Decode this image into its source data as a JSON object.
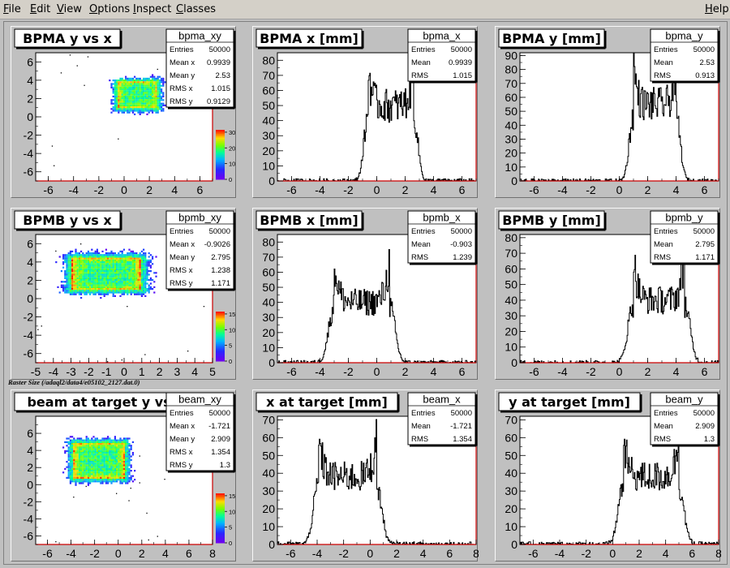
{
  "menubar": {
    "items": [
      {
        "ul": "F",
        "rest": "ile"
      },
      {
        "ul": "E",
        "rest": "dit"
      },
      {
        "ul": "V",
        "rest": "iew"
      },
      {
        "ul": "O",
        "rest": "ptions"
      },
      {
        "ul": "I",
        "rest": "nspect"
      },
      {
        "ul": "C",
        "rest": "lasses"
      }
    ],
    "help": {
      "ul": "H",
      "rest": "elp"
    }
  },
  "raster_caption": "Raster Size (/adaql2/data4/e05102_2127.dat.0)",
  "colors": {
    "hist_line": "#000000",
    "frame_red": "#cc0000",
    "pad_bg": "#ffffff",
    "canvas_bg": "#c0c0c0"
  },
  "chart_data": [
    {
      "type": "heatmap",
      "title": "BPMA y vs x",
      "stat_name": "bpma_xy",
      "stats": [
        [
          "Entries",
          "50000"
        ],
        [
          "Mean x",
          "0.9939"
        ],
        [
          "Mean y",
          "2.53"
        ],
        [
          "RMS x",
          "1.015"
        ],
        [
          "RMS y",
          "0.9129"
        ]
      ],
      "xlim": [
        -7,
        7
      ],
      "ylim": [
        -7,
        7
      ],
      "xticks": [
        -6,
        -4,
        -2,
        0,
        2,
        4,
        6
      ],
      "yticks": [
        -6,
        -4,
        -2,
        0,
        2,
        4,
        6
      ],
      "rect": {
        "xmin": -0.6,
        "xmax": 2.6,
        "ymin": 1.0,
        "ymax": 4.0
      },
      "edge": 0.35,
      "palette_ticks": [
        0,
        10,
        20,
        30
      ]
    },
    {
      "type": "histogram",
      "title": "BPMA x [mm]",
      "stat_name": "bpma_x",
      "stats": [
        [
          "Entries",
          "50000"
        ],
        [
          "Mean",
          "0.9939"
        ],
        [
          "RMS",
          "1.015"
        ]
      ],
      "xlim": [
        -7,
        7
      ],
      "ylim": [
        0,
        85
      ],
      "xticks": [
        -6,
        -4,
        -2,
        0,
        2,
        4,
        6
      ],
      "yticks": [
        0,
        10,
        20,
        30,
        40,
        50,
        60,
        70,
        80
      ],
      "flat": [
        -0.6,
        2.6
      ],
      "edge": 0.35,
      "peak": 78,
      "trough": 50
    },
    {
      "type": "histogram",
      "title": "BPMA y [mm]",
      "stat_name": "bpma_y",
      "stats": [
        [
          "Entries",
          "50000"
        ],
        [
          "Mean",
          "2.53"
        ],
        [
          "RMS",
          "0.913"
        ]
      ],
      "xlim": [
        -7,
        7
      ],
      "ylim": [
        0,
        92
      ],
      "xticks": [
        -6,
        -4,
        -2,
        0,
        2,
        4,
        6
      ],
      "yticks": [
        0,
        10,
        20,
        30,
        40,
        50,
        60,
        70,
        80,
        90
      ],
      "flat": [
        1.0,
        4.0
      ],
      "edge": 0.35,
      "peak": 85,
      "trough": 55
    },
    {
      "type": "heatmap",
      "title": "BPMB y vs x",
      "stat_name": "bpmb_xy",
      "stats": [
        [
          "Entries",
          "50000"
        ],
        [
          "Mean x",
          "-0.9026"
        ],
        [
          "Mean y",
          "2.795"
        ],
        [
          "RMS x",
          "1.238"
        ],
        [
          "RMS y",
          "1.171"
        ]
      ],
      "xlim": [
        -5,
        5
      ],
      "ylim": [
        -7,
        7
      ],
      "xticks": [
        -5,
        -4,
        -3,
        -2,
        -1,
        0,
        1,
        2,
        3,
        4,
        5
      ],
      "yticks": [
        -6,
        -4,
        -2,
        0,
        2,
        4,
        6
      ],
      "rect": {
        "xmin": -3.0,
        "xmax": 0.9,
        "ymin": 1.0,
        "ymax": 4.6
      },
      "edge": 0.45,
      "palette_ticks": [
        0,
        5,
        10,
        15
      ]
    },
    {
      "type": "histogram",
      "title": "BPMB x [mm]",
      "stat_name": "bpmb_x",
      "stats": [
        [
          "Entries",
          "50000"
        ],
        [
          "Mean",
          "-0.903"
        ],
        [
          "RMS",
          "1.239"
        ]
      ],
      "xlim": [
        -7,
        7
      ],
      "ylim": [
        0,
        85
      ],
      "xticks": [
        -6,
        -4,
        -2,
        0,
        2,
        4,
        6
      ],
      "yticks": [
        0,
        10,
        20,
        30,
        40,
        50,
        60,
        70,
        80
      ],
      "flat": [
        -3.0,
        0.9
      ],
      "edge": 0.45,
      "peak": 68,
      "trough": 40
    },
    {
      "type": "histogram",
      "title": "BPMB y [mm]",
      "stat_name": "bpmb_y",
      "stats": [
        [
          "Entries",
          "50000"
        ],
        [
          "Mean",
          "2.795"
        ],
        [
          "RMS",
          "1.171"
        ]
      ],
      "xlim": [
        -7,
        7
      ],
      "ylim": [
        0,
        82
      ],
      "xticks": [
        -6,
        -4,
        -2,
        0,
        2,
        4,
        6
      ],
      "yticks": [
        0,
        10,
        20,
        30,
        40,
        50,
        60,
        70,
        80
      ],
      "flat": [
        1.0,
        4.6
      ],
      "edge": 0.45,
      "peak": 68,
      "trough": 40
    },
    {
      "type": "heatmap",
      "title": "beam at target y vs x",
      "stat_name": "beam_xy",
      "stats": [
        [
          "Entries",
          "50000"
        ],
        [
          "Mean x",
          "-1.721"
        ],
        [
          "Mean y",
          "2.909"
        ],
        [
          "RMS x",
          "1.354"
        ],
        [
          "RMS y",
          "1.3"
        ]
      ],
      "xlim": [
        -7,
        8
      ],
      "ylim": [
        -7,
        8
      ],
      "xticks": [
        -6,
        -4,
        -2,
        0,
        2,
        4,
        6,
        8
      ],
      "yticks": [
        -6,
        -4,
        -2,
        0,
        2,
        4,
        6
      ],
      "rect": {
        "xmin": -3.9,
        "xmax": 0.5,
        "ymin": 0.8,
        "ymax": 5.0
      },
      "edge": 0.45,
      "palette_ticks": [
        0,
        5,
        10,
        15
      ]
    },
    {
      "type": "histogram",
      "title": "x at target [mm]",
      "stat_name": "beam_x",
      "stats": [
        [
          "Entries",
          "50000"
        ],
        [
          "Mean",
          "-1.721"
        ],
        [
          "RMS",
          "1.354"
        ]
      ],
      "xlim": [
        -7,
        8
      ],
      "ylim": [
        0,
        72
      ],
      "xticks": [
        -6,
        -4,
        -2,
        0,
        2,
        4,
        6,
        8
      ],
      "yticks": [
        0,
        10,
        20,
        30,
        40,
        50,
        60,
        70
      ],
      "flat": [
        -3.9,
        0.5
      ],
      "edge": 0.45,
      "peak": 60,
      "trough": 38
    },
    {
      "type": "histogram",
      "title": "y at target [mm]",
      "stat_name": "beam_y",
      "stats": [
        [
          "Entries",
          "50000"
        ],
        [
          "Mean",
          "2.909"
        ],
        [
          "RMS",
          "1.3"
        ]
      ],
      "xlim": [
        -7,
        8
      ],
      "ylim": [
        0,
        72
      ],
      "xticks": [
        -6,
        -4,
        -2,
        0,
        2,
        4,
        6,
        8
      ],
      "yticks": [
        0,
        10,
        20,
        30,
        40,
        50,
        60,
        70
      ],
      "flat": [
        0.8,
        5.0
      ],
      "edge": 0.45,
      "peak": 60,
      "trough": 38
    }
  ]
}
